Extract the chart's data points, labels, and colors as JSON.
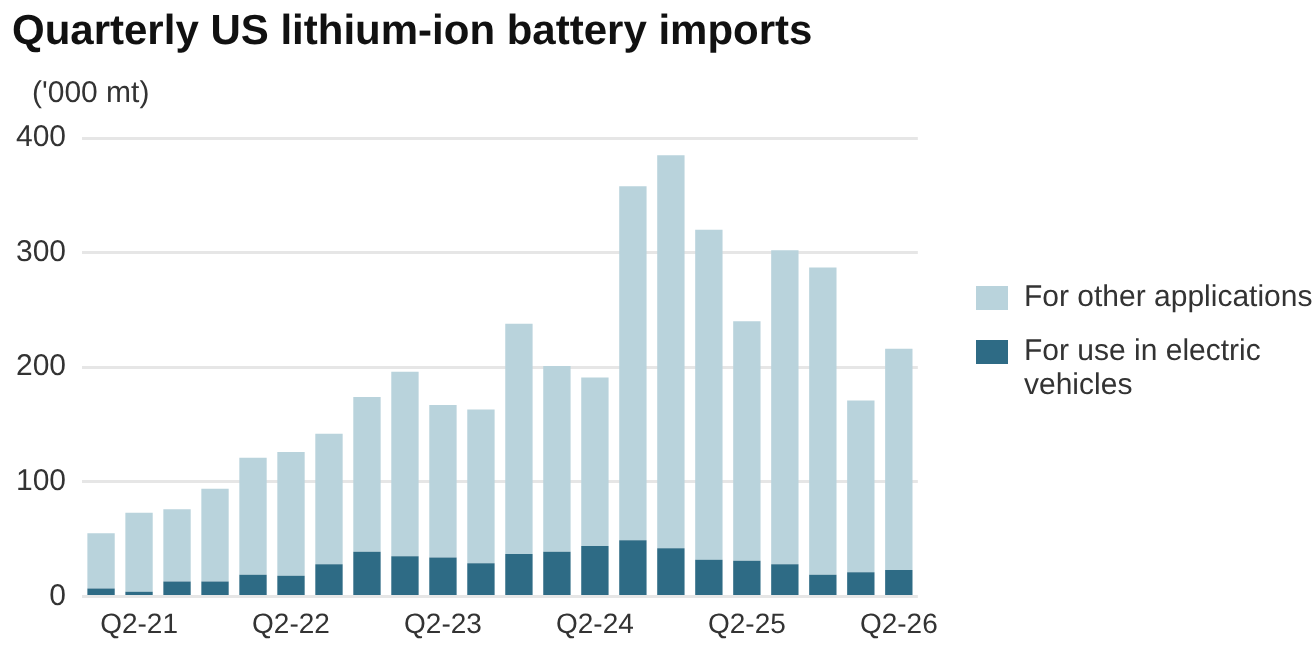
{
  "chart_data": {
    "type": "bar",
    "title": "Quarterly US lithium-ion battery imports",
    "ylabel": "('000 mt)",
    "categories": [
      null,
      "Q2-21",
      null,
      null,
      null,
      "Q2-22",
      null,
      null,
      null,
      "Q2-23",
      null,
      null,
      null,
      "Q2-24",
      null,
      null,
      null,
      "Q2-25",
      null,
      null,
      null,
      "Q2-26"
    ],
    "series": [
      {
        "name": "For use in electric vehicles",
        "color": "#2e6b85",
        "values": [
          7,
          4,
          13,
          13,
          19,
          18,
          28,
          39,
          35,
          34,
          29,
          37,
          39,
          44,
          49,
          42,
          32,
          31,
          28,
          19,
          21,
          23
        ]
      },
      {
        "name": "For other applications",
        "color": "#b9d3dc",
        "values": [
          48,
          69,
          63,
          81,
          102,
          108,
          114,
          135,
          161,
          133,
          134,
          201,
          162,
          147,
          309,
          343,
          288,
          209,
          274,
          268,
          150,
          193
        ]
      }
    ],
    "stacked": true,
    "ylim": [
      0,
      400
    ],
    "yticks": [
      0,
      100,
      200,
      300,
      400
    ],
    "grid": "y",
    "legend": "right"
  }
}
